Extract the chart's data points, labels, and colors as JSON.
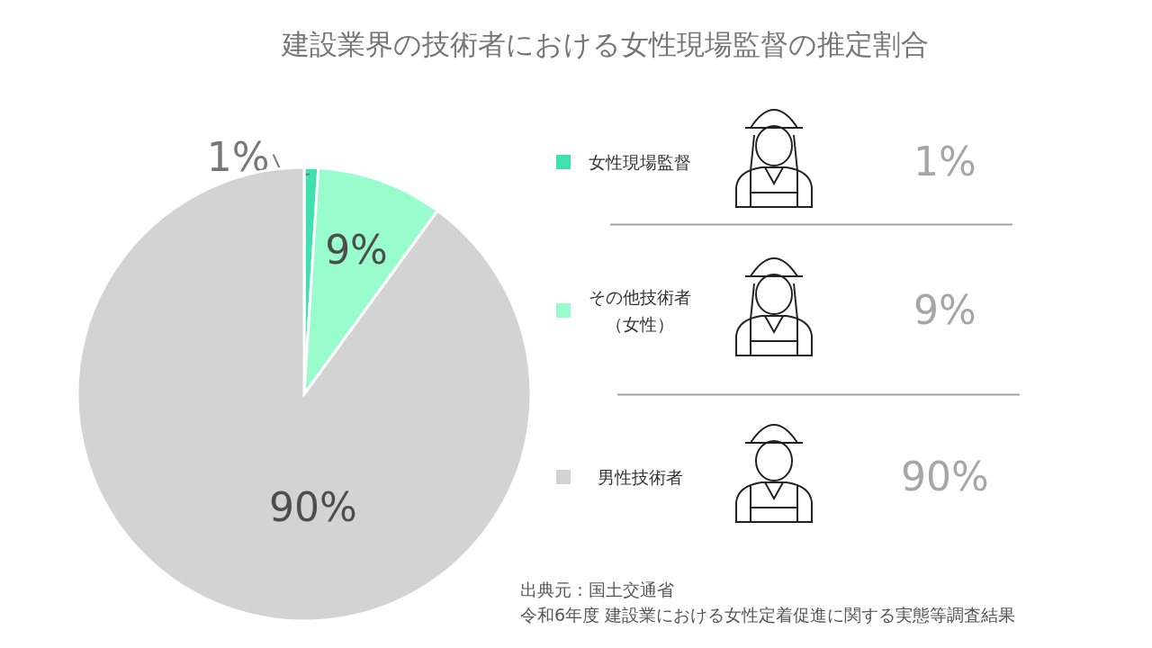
{
  "chart_data": {
    "type": "pie",
    "title": "建設業界の技術者における女性現場監督の推定割合",
    "categories": [
      "女性現場監督",
      "その他技術者（女性）",
      "男性技術者"
    ],
    "values": [
      1,
      9,
      90
    ],
    "colors": [
      "#40e0b0",
      "#98fccc",
      "#d3d3d3"
    ],
    "value_labels": [
      "1%",
      "9%",
      "90%"
    ],
    "legend": "right",
    "annotations": [
      "出典元：国土交通省",
      "令和6年度 建設業における女性定着促進に関する実態等調査結果"
    ]
  }
}
